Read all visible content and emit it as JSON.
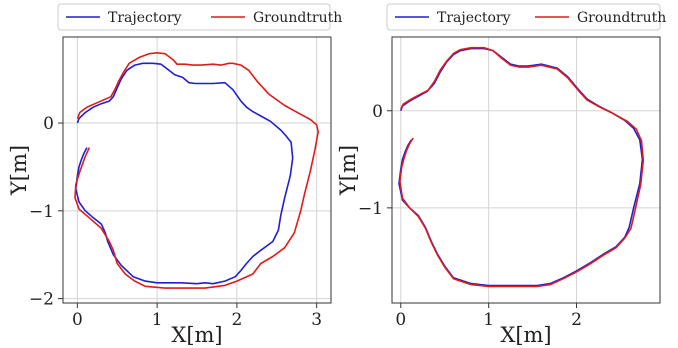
{
  "chart_data": [
    {
      "type": "line",
      "title": "",
      "xlabel": "X[m]",
      "ylabel": "Y[m]",
      "xlim": [
        -0.18,
        3.18
      ],
      "ylim": [
        -2.05,
        0.98
      ],
      "xticks": [
        0,
        1,
        2,
        3
      ],
      "yticks": [
        0,
        -1,
        -2
      ],
      "grid": true,
      "legend": {
        "placement": "top-outside",
        "entries": [
          "Trajectory",
          "Groundtruth"
        ]
      },
      "series": [
        {
          "name": "Trajectory",
          "color": "#1f1fd6",
          "x": [
            0.0,
            0.02,
            0.1,
            0.2,
            0.3,
            0.4,
            0.45,
            0.5,
            0.55,
            0.62,
            0.72,
            0.82,
            0.95,
            1.05,
            1.15,
            1.22,
            1.32,
            1.4,
            1.48,
            1.7,
            1.85,
            1.95,
            2.05,
            2.12,
            2.2,
            2.3,
            2.42,
            2.55,
            2.62,
            2.68,
            2.7,
            2.67,
            2.6,
            2.55,
            2.52,
            2.45,
            2.3,
            2.2,
            2.12,
            2.05,
            1.98,
            1.85,
            1.7,
            1.6,
            1.5,
            1.3,
            1.0,
            0.85,
            0.7,
            0.55,
            0.45,
            0.38,
            0.35,
            0.3,
            0.2,
            0.1,
            0.02,
            -0.02,
            0.0,
            0.02,
            0.05,
            0.08,
            0.12
          ],
          "y": [
            0.0,
            0.05,
            0.12,
            0.18,
            0.22,
            0.25,
            0.3,
            0.4,
            0.5,
            0.6,
            0.66,
            0.68,
            0.68,
            0.67,
            0.6,
            0.55,
            0.52,
            0.46,
            0.45,
            0.45,
            0.46,
            0.38,
            0.25,
            0.18,
            0.13,
            0.08,
            0.02,
            -0.08,
            -0.15,
            -0.22,
            -0.4,
            -0.6,
            -0.85,
            -1.05,
            -1.22,
            -1.35,
            -1.45,
            -1.52,
            -1.6,
            -1.68,
            -1.75,
            -1.8,
            -1.83,
            -1.82,
            -1.83,
            -1.82,
            -1.82,
            -1.8,
            -1.75,
            -1.62,
            -1.5,
            -1.35,
            -1.25,
            -1.15,
            -1.08,
            -1.0,
            -0.9,
            -0.75,
            -0.6,
            -0.5,
            -0.42,
            -0.35,
            -0.28
          ]
        },
        {
          "name": "Groundtruth",
          "color": "#e01b1b",
          "x": [
            0.0,
            0.03,
            0.12,
            0.22,
            0.32,
            0.42,
            0.47,
            0.52,
            0.58,
            0.65,
            0.78,
            0.9,
            1.0,
            1.1,
            1.2,
            1.25,
            1.35,
            1.45,
            1.55,
            1.7,
            1.8,
            1.9,
            1.95,
            2.05,
            2.15,
            2.25,
            2.4,
            2.6,
            2.8,
            2.92,
            3.0,
            3.02,
            2.98,
            2.92,
            2.85,
            2.8,
            2.72,
            2.6,
            2.45,
            2.3,
            2.2,
            2.0,
            1.85,
            1.6,
            1.35,
            1.1,
            0.85,
            0.72,
            0.6,
            0.5,
            0.45,
            0.4,
            0.3,
            0.15,
            0.02,
            -0.03,
            -0.02,
            0.02,
            0.06,
            0.1,
            0.15
          ],
          "y": [
            0.05,
            0.12,
            0.18,
            0.22,
            0.26,
            0.3,
            0.38,
            0.48,
            0.58,
            0.68,
            0.75,
            0.79,
            0.8,
            0.79,
            0.72,
            0.67,
            0.67,
            0.66,
            0.66,
            0.67,
            0.66,
            0.68,
            0.68,
            0.66,
            0.6,
            0.48,
            0.33,
            0.2,
            0.1,
            0.04,
            -0.02,
            -0.1,
            -0.3,
            -0.55,
            -0.8,
            -1.0,
            -1.25,
            -1.42,
            -1.52,
            -1.6,
            -1.72,
            -1.8,
            -1.85,
            -1.88,
            -1.88,
            -1.88,
            -1.86,
            -1.8,
            -1.72,
            -1.6,
            -1.45,
            -1.35,
            -1.2,
            -1.08,
            -0.98,
            -0.85,
            -0.7,
            -0.58,
            -0.48,
            -0.38,
            -0.28
          ]
        }
      ]
    },
    {
      "type": "line",
      "title": "",
      "xlabel": "X[m]",
      "ylabel": "Y[m]",
      "xlim": [
        -0.1,
        2.95
      ],
      "ylim": [
        -1.98,
        0.76
      ],
      "xticks": [
        0,
        1,
        2
      ],
      "yticks": [
        0,
        -1
      ],
      "grid": true,
      "legend": {
        "placement": "top-outside",
        "entries": [
          "Trajectory",
          "Groundtruth"
        ]
      },
      "series": [
        {
          "name": "Trajectory",
          "color": "#1f1fd6",
          "x": [
            0.0,
            0.02,
            0.1,
            0.2,
            0.3,
            0.38,
            0.45,
            0.52,
            0.6,
            0.68,
            0.8,
            0.95,
            1.05,
            1.15,
            1.25,
            1.35,
            1.45,
            1.6,
            1.78,
            1.9,
            2.02,
            2.12,
            2.25,
            2.4,
            2.55,
            2.65,
            2.72,
            2.75,
            2.72,
            2.65,
            2.6,
            2.55,
            2.45,
            2.3,
            2.15,
            2.0,
            1.85,
            1.7,
            1.55,
            1.3,
            1.0,
            0.8,
            0.6,
            0.5,
            0.42,
            0.35,
            0.28,
            0.2,
            0.1,
            0.02,
            -0.02,
            0.0,
            0.02,
            0.05,
            0.08,
            0.12
          ],
          "y": [
            0.0,
            0.05,
            0.1,
            0.15,
            0.2,
            0.28,
            0.4,
            0.5,
            0.58,
            0.62,
            0.64,
            0.64,
            0.62,
            0.55,
            0.48,
            0.46,
            0.46,
            0.48,
            0.44,
            0.35,
            0.22,
            0.12,
            0.05,
            -0.02,
            -0.1,
            -0.18,
            -0.3,
            -0.5,
            -0.75,
            -1.0,
            -1.2,
            -1.3,
            -1.4,
            -1.48,
            -1.57,
            -1.65,
            -1.72,
            -1.78,
            -1.8,
            -1.8,
            -1.8,
            -1.78,
            -1.72,
            -1.6,
            -1.48,
            -1.35,
            -1.2,
            -1.08,
            -1.0,
            -0.92,
            -0.75,
            -0.6,
            -0.5,
            -0.42,
            -0.36,
            -0.3
          ]
        },
        {
          "name": "Groundtruth",
          "color": "#e01b1b",
          "x": [
            0.0,
            0.03,
            0.12,
            0.22,
            0.31,
            0.38,
            0.45,
            0.52,
            0.6,
            0.68,
            0.8,
            0.95,
            1.05,
            1.15,
            1.25,
            1.35,
            1.45,
            1.6,
            1.78,
            1.9,
            2.02,
            2.12,
            2.26,
            2.42,
            2.58,
            2.68,
            2.74,
            2.76,
            2.73,
            2.67,
            2.62,
            2.55,
            2.45,
            2.3,
            2.15,
            2.0,
            1.85,
            1.7,
            1.55,
            1.3,
            1.0,
            0.8,
            0.6,
            0.5,
            0.42,
            0.35,
            0.28,
            0.2,
            0.1,
            0.02,
            -0.01,
            0.01,
            0.04,
            0.07,
            0.1,
            0.14
          ],
          "y": [
            0.02,
            0.07,
            0.12,
            0.17,
            0.21,
            0.3,
            0.42,
            0.51,
            0.59,
            0.63,
            0.65,
            0.65,
            0.62,
            0.54,
            0.47,
            0.45,
            0.45,
            0.47,
            0.43,
            0.34,
            0.21,
            0.11,
            0.04,
            -0.03,
            -0.11,
            -0.19,
            -0.31,
            -0.51,
            -0.76,
            -1.01,
            -1.21,
            -1.31,
            -1.41,
            -1.49,
            -1.58,
            -1.66,
            -1.73,
            -1.79,
            -1.81,
            -1.81,
            -1.81,
            -1.79,
            -1.73,
            -1.61,
            -1.49,
            -1.36,
            -1.21,
            -1.09,
            -1.0,
            -0.9,
            -0.73,
            -0.58,
            -0.48,
            -0.4,
            -0.34,
            -0.28
          ]
        }
      ]
    }
  ]
}
